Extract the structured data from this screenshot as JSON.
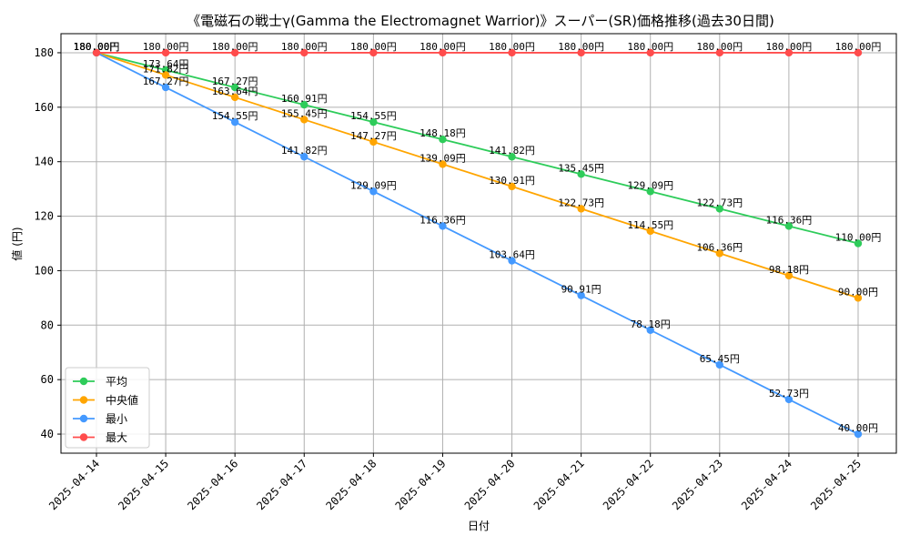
{
  "chart_data": {
    "type": "line",
    "title": "《電磁石の戦士γ(Gamma the Electromagnet Warrior)》スーパー(SR)価格推移(過去30日間)",
    "xlabel": "日付",
    "ylabel": "値 (円)",
    "ylim": [
      33,
      187
    ],
    "yticks": [
      40,
      60,
      80,
      100,
      120,
      140,
      160,
      180
    ],
    "grid": true,
    "legend_position": "lower-left",
    "value_suffix": "円",
    "categories": [
      "2025-04-14",
      "2025-04-15",
      "2025-04-16",
      "2025-04-17",
      "2025-04-18",
      "2025-04-19",
      "2025-04-20",
      "2025-04-21",
      "2025-04-22",
      "2025-04-23",
      "2025-04-24",
      "2025-04-25"
    ],
    "series": [
      {
        "name": "平均",
        "color": "#2ecc5a",
        "values": [
          180.0,
          173.64,
          167.27,
          160.91,
          154.55,
          148.18,
          141.82,
          135.45,
          129.09,
          122.73,
          116.36,
          110.0
        ]
      },
      {
        "name": "中央値",
        "color": "#ffa500",
        "values": [
          180.0,
          171.82,
          163.64,
          155.45,
          147.27,
          139.09,
          130.91,
          122.73,
          114.55,
          106.36,
          98.18,
          90.0
        ]
      },
      {
        "name": "最小",
        "color": "#4499ff",
        "values": [
          180.0,
          167.27,
          154.55,
          141.82,
          129.09,
          116.36,
          103.64,
          90.91,
          78.18,
          65.45,
          52.73,
          40.0
        ]
      },
      {
        "name": "最大",
        "color": "#ff4c4c",
        "values": [
          180.0,
          180.0,
          180.0,
          180.0,
          180.0,
          180.0,
          180.0,
          180.0,
          180.0,
          180.0,
          180.0,
          180.0
        ]
      }
    ]
  }
}
